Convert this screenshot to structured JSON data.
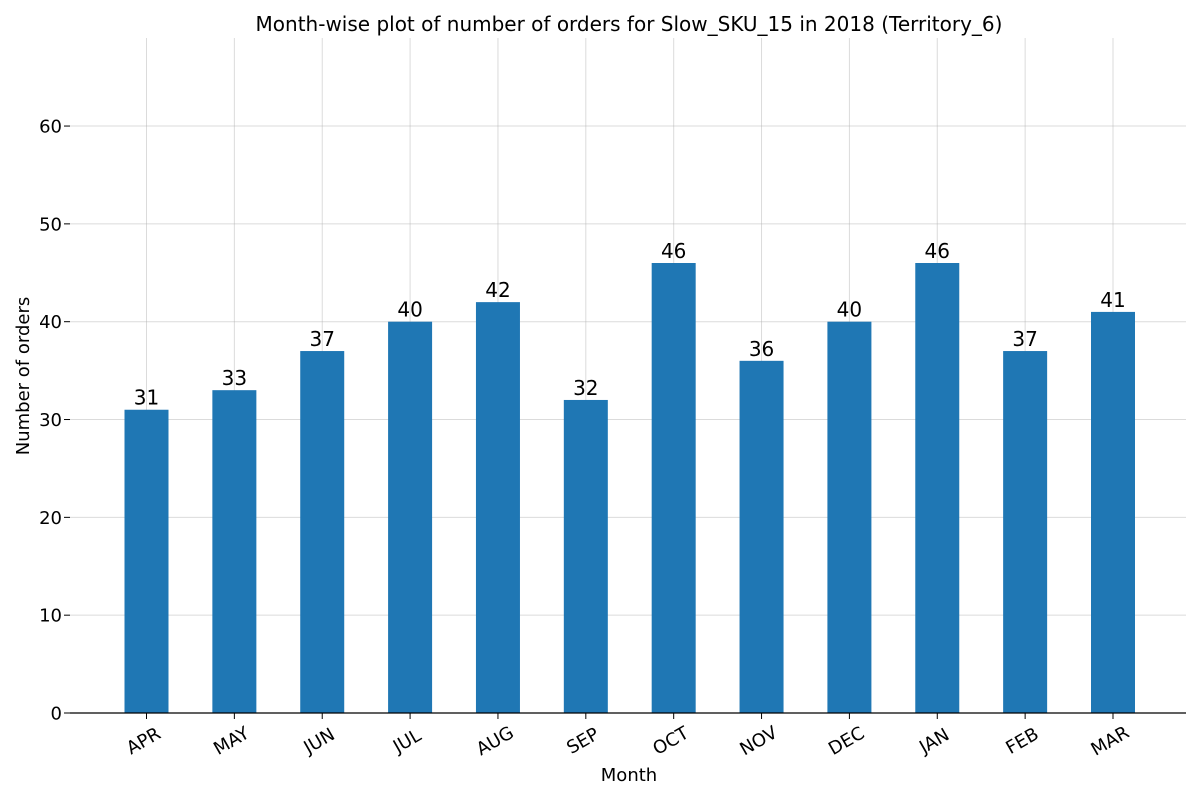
{
  "chart_data": {
    "type": "bar",
    "title": "Month-wise plot of number of orders for Slow_SKU_15 in 2018 (Territory_6)",
    "xlabel": "Month",
    "ylabel": "Number of orders",
    "categories": [
      "APR",
      "MAY",
      "JUN",
      "JUL",
      "AUG",
      "SEP",
      "OCT",
      "NOV",
      "DEC",
      "JAN",
      "FEB",
      "MAR"
    ],
    "values": [
      31,
      33,
      37,
      40,
      42,
      32,
      46,
      36,
      40,
      46,
      37,
      41
    ],
    "ylim": [
      0,
      69
    ],
    "yticks": [
      0,
      10,
      20,
      30,
      40,
      50,
      60
    ],
    "grid": true,
    "bar_color": "#1f77b4"
  }
}
